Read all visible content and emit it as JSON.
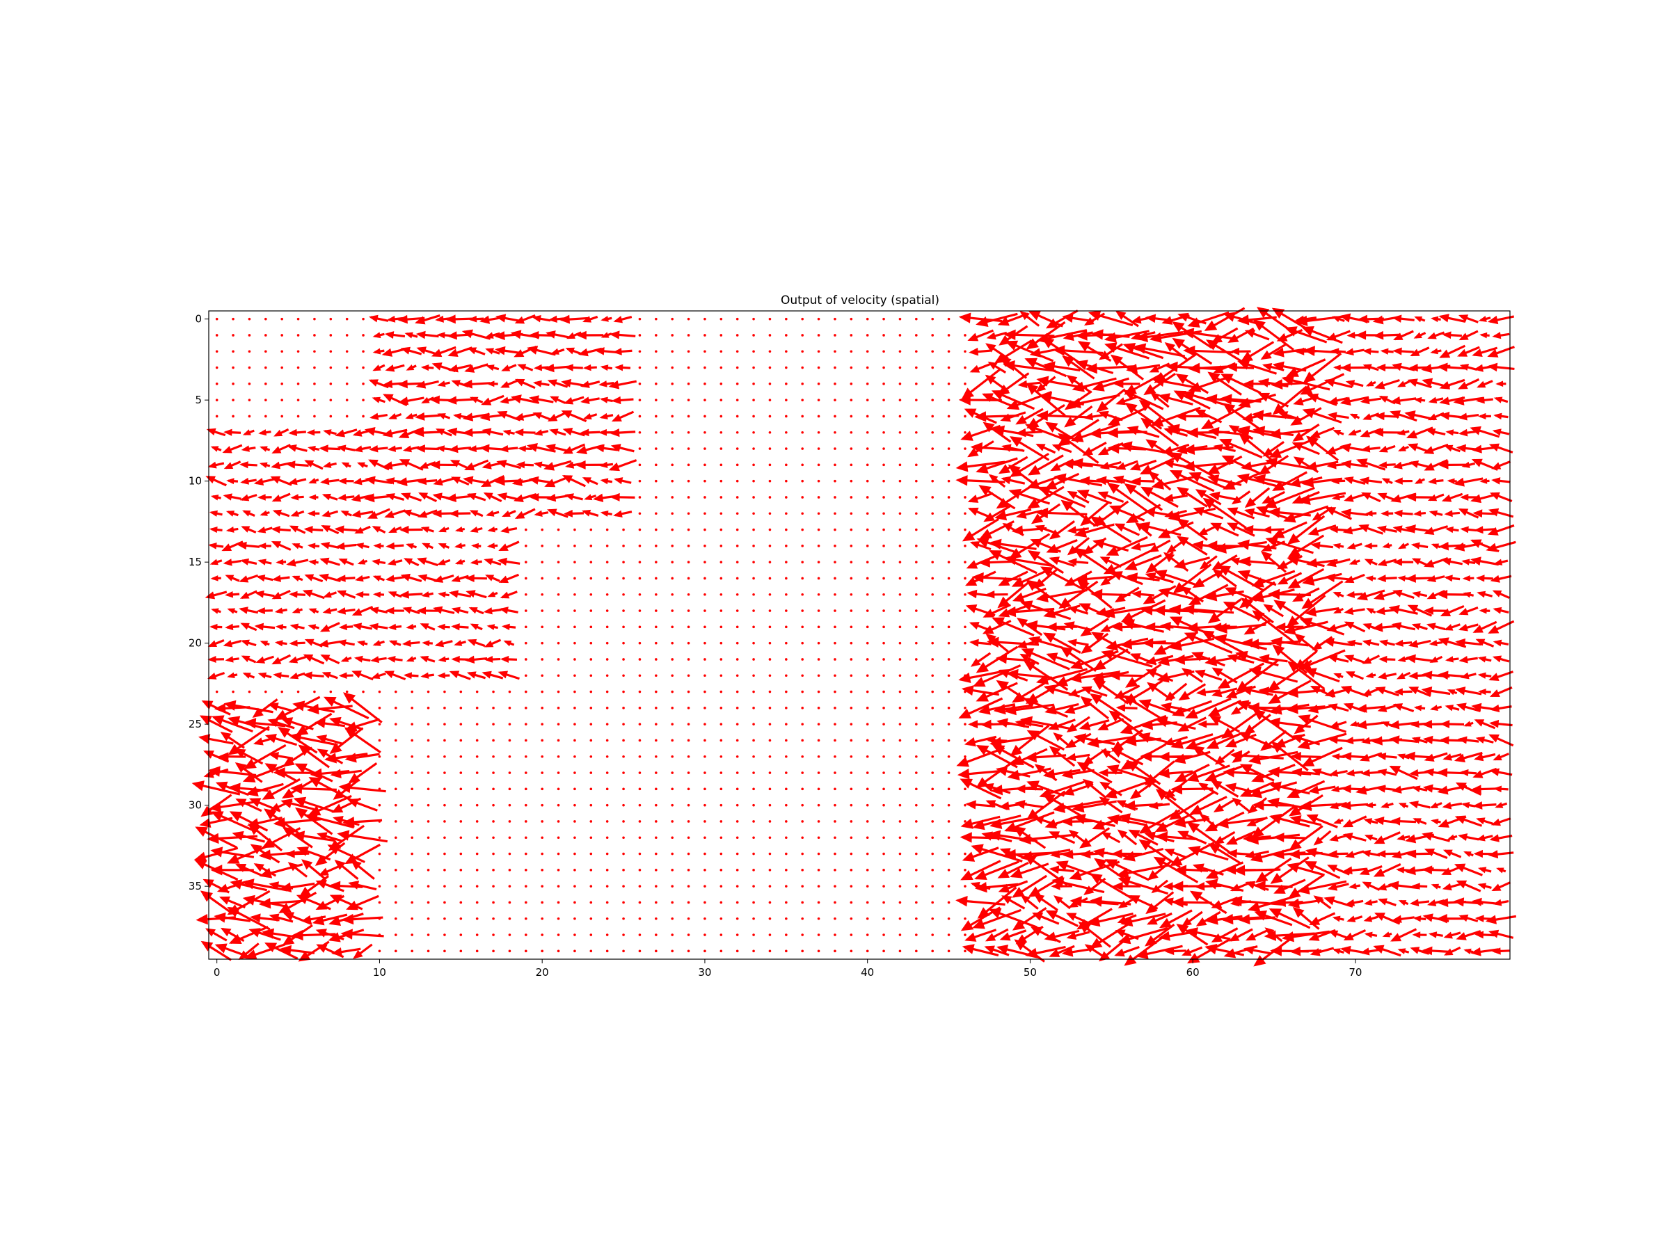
{
  "chart_data": {
    "type": "quiver",
    "title": "Output of velocity (spatial)",
    "xlabel": "",
    "ylabel": "",
    "x_range": [
      -0.5,
      79.5
    ],
    "y_range": [
      -0.5,
      39.5
    ],
    "y_inverted": true,
    "grid": false,
    "xticks": [
      0,
      10,
      20,
      30,
      40,
      50,
      60,
      70
    ],
    "yticks": [
      0,
      5,
      10,
      15,
      20,
      25,
      30,
      35
    ],
    "arrow_color": "#ff0000",
    "grid_points": {
      "nx": 80,
      "ny": 40
    },
    "typical_direction": "pointing left (negative x)",
    "regions": [
      {
        "name": "upper-left cluster",
        "x_extent": [
          10,
          25
        ],
        "y_extent": [
          0,
          12
        ],
        "magnitude": "medium"
      },
      {
        "name": "left band",
        "x_extent": [
          0,
          18
        ],
        "y_extent": [
          7,
          22
        ],
        "magnitude": "small-medium"
      },
      {
        "name": "lower-left cluster",
        "x_extent": [
          0,
          9
        ],
        "y_extent": [
          24,
          39
        ],
        "magnitude": "large"
      },
      {
        "name": "central calm region",
        "x_extent": [
          25,
          47
        ],
        "y_extent": [
          0,
          39
        ],
        "magnitude": "near zero"
      },
      {
        "name": "right high-velocity band",
        "x_extent": [
          47,
          68
        ],
        "y_extent": [
          0,
          39
        ],
        "magnitude": "large"
      },
      {
        "name": "far-right band",
        "x_extent": [
          68,
          79
        ],
        "y_extent": [
          0,
          39
        ],
        "magnitude": "small-medium"
      }
    ]
  }
}
